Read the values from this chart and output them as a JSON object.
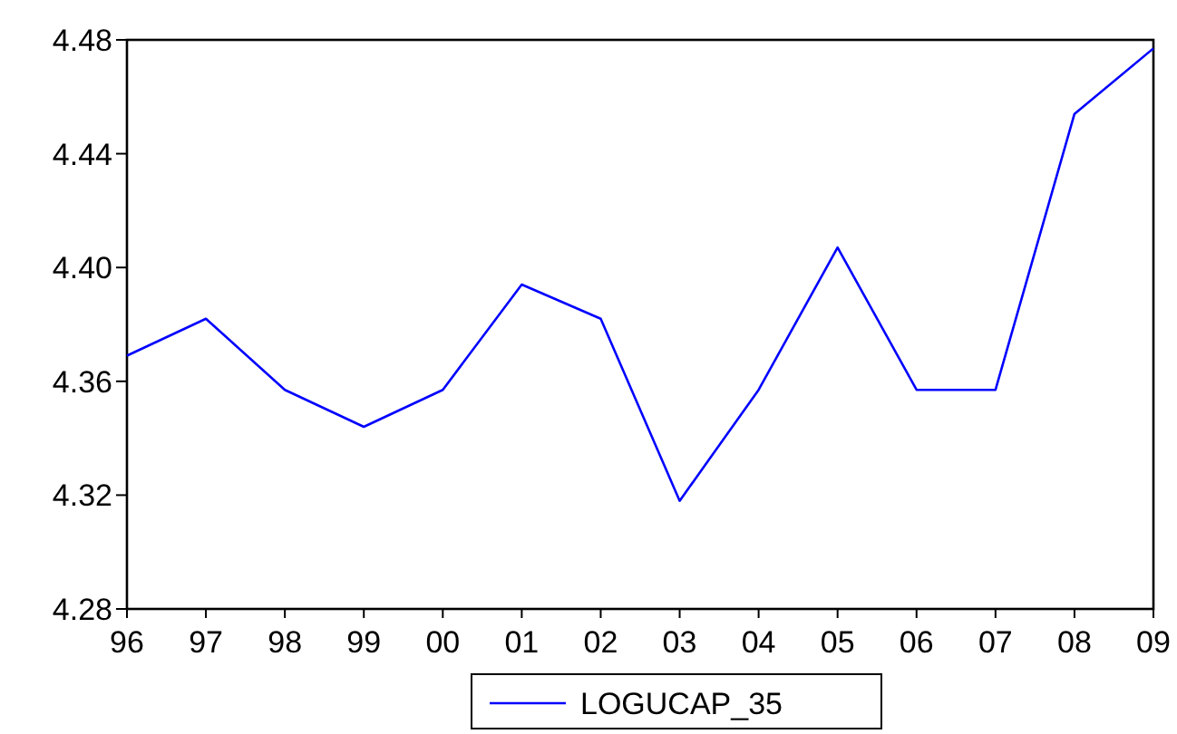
{
  "chart_data": {
    "type": "line",
    "categories": [
      "96",
      "97",
      "98",
      "99",
      "00",
      "01",
      "02",
      "03",
      "04",
      "05",
      "06",
      "07",
      "08",
      "09"
    ],
    "series": [
      {
        "name": "LOGUCAP_35",
        "color": "#0000ff",
        "values": [
          4.369,
          4.382,
          4.357,
          4.344,
          4.357,
          4.394,
          4.382,
          4.318,
          4.357,
          4.407,
          4.357,
          4.357,
          4.454,
          4.477
        ]
      }
    ],
    "ylim": [
      4.28,
      4.48
    ],
    "yticks": [
      4.28,
      4.32,
      4.36,
      {
        "value": 4.4,
        "label": "4.40"
      },
      4.44,
      4.48
    ],
    "grid": false,
    "legend": "bottom",
    "marker": "none",
    "line_style": "solid"
  }
}
